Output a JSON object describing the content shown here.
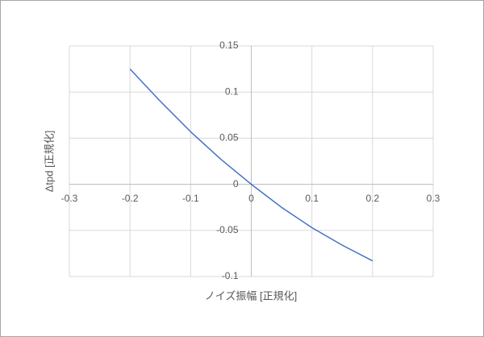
{
  "chart_data": {
    "type": "line",
    "x_label": "ノイズ振幅 [正規化]",
    "y_label": "Δtpd [正規化]",
    "x": [
      -0.2,
      -0.15,
      -0.1,
      -0.05,
      0,
      0.05,
      0.1,
      0.15,
      0.2
    ],
    "series": [
      {
        "color": "#4472c4",
        "values": [
          0.125,
          0.09,
          0.057,
          0.027,
          0,
          -0.025,
          -0.047,
          -0.066,
          -0.083
        ]
      }
    ],
    "xlim": [
      -0.3,
      0.3
    ],
    "xticks": [
      -0.3,
      -0.2,
      -0.1,
      0,
      0.1,
      0.2,
      0.3
    ],
    "ylim": [
      -0.1,
      0.15
    ],
    "yticks": [
      -0.1,
      -0.05,
      0,
      0.05,
      0.1,
      0.15
    ],
    "grid": true
  }
}
